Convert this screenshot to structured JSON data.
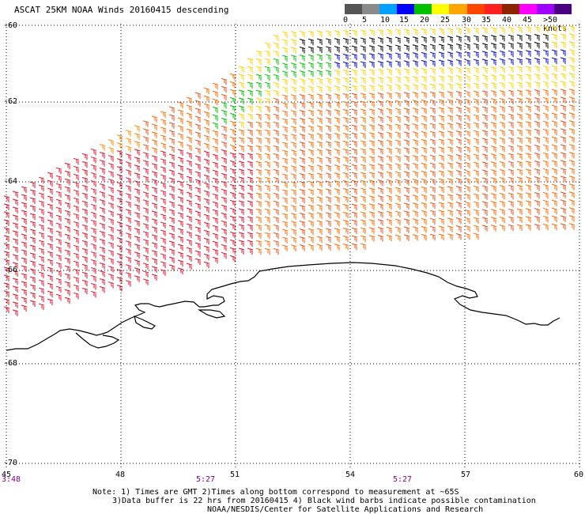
{
  "title": "ASCAT 25KM NOAA Winds 20160415 descending",
  "colorbar": {
    "colors": [
      "#555555",
      "#8a8a8a",
      "#00a0ff",
      "#0000ff",
      "#00c000",
      "#ffff00",
      "#ffa500",
      "#ff4500",
      "#ff2020",
      "#8b2500",
      "#ff00ff",
      "#a000ff",
      "#4b0082"
    ],
    "labels": [
      "0",
      "5",
      "10",
      "15",
      "20",
      "25",
      "30",
      "35",
      "40",
      "45",
      ">50 knots"
    ]
  },
  "axes": {
    "lat_labels": [
      "-60",
      "-62",
      "-64",
      "-66",
      "-68",
      "-70"
    ],
    "lon_labels": [
      "45",
      "48",
      "51",
      "54",
      "57",
      "60"
    ],
    "times": [
      "3:48",
      "5:27",
      "5:27"
    ]
  },
  "notes": {
    "line1": "Note: 1) Times are GMT 2)Times along bottom correspond to measurement at ~65S",
    "line2": "3)Data buffer is 22 hrs from 20160415 4) Black wind barbs indicate possible contamination",
    "line3": "NOAA/NESDIS/Center for Satellite Applications and Research"
  }
}
